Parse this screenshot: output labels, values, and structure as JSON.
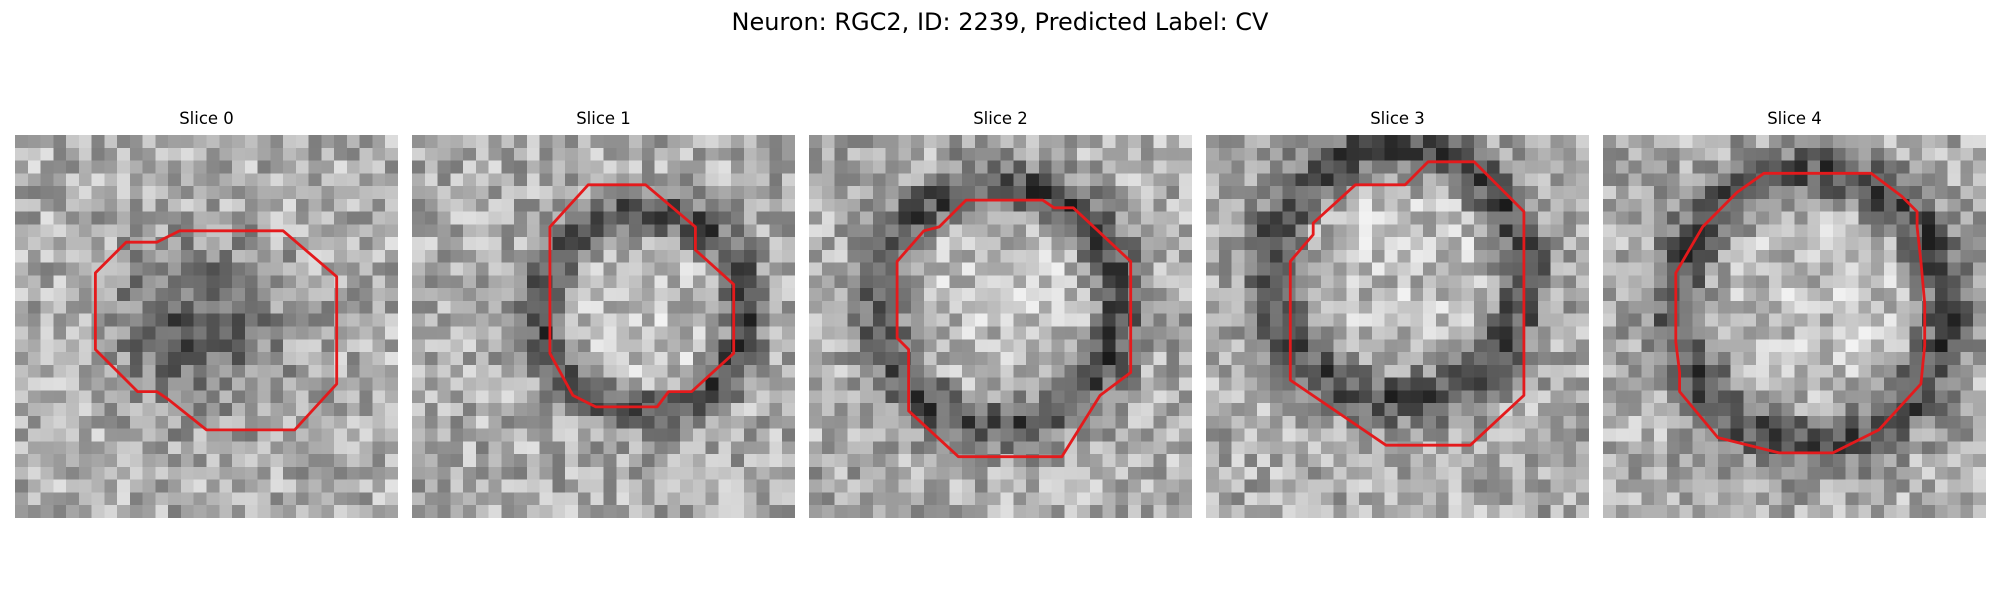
{
  "figure": {
    "title": "Neuron: RGC2, ID: 2239, Predicted Label: CV"
  },
  "panels": [
    {
      "title": "Slice 0",
      "seed": 11,
      "pattern": "dark-center",
      "outline": [
        [
          2.1,
          3.6
        ],
        [
          2.9,
          2.8
        ],
        [
          3.7,
          2.8
        ],
        [
          4.3,
          2.5
        ],
        [
          7.0,
          2.5
        ],
        [
          8.4,
          3.7
        ],
        [
          8.4,
          6.5
        ],
        [
          7.3,
          7.7
        ],
        [
          5.0,
          7.7
        ],
        [
          4.0,
          6.9
        ],
        [
          3.7,
          6.7
        ],
        [
          3.2,
          6.7
        ],
        [
          2.1,
          5.6
        ]
      ]
    },
    {
      "title": "Slice 1",
      "seed": 23,
      "pattern": "dark-ring",
      "outline": [
        [
          3.6,
          2.4
        ],
        [
          4.6,
          1.3
        ],
        [
          6.1,
          1.3
        ],
        [
          7.4,
          2.4
        ],
        [
          7.4,
          3.0
        ],
        [
          8.4,
          3.9
        ],
        [
          8.4,
          5.7
        ],
        [
          7.3,
          6.7
        ],
        [
          6.7,
          6.7
        ],
        [
          6.4,
          7.1
        ],
        [
          4.8,
          7.1
        ],
        [
          4.2,
          6.8
        ],
        [
          3.6,
          5.7
        ]
      ]
    },
    {
      "title": "Slice 2",
      "seed": 37,
      "pattern": "dark-ring",
      "outline": [
        [
          2.3,
          3.3
        ],
        [
          3.0,
          2.5
        ],
        [
          3.4,
          2.4
        ],
        [
          4.1,
          1.7
        ],
        [
          6.1,
          1.7
        ],
        [
          6.4,
          1.9
        ],
        [
          6.9,
          1.9
        ],
        [
          8.4,
          3.3
        ],
        [
          8.4,
          6.2
        ],
        [
          7.6,
          6.8
        ],
        [
          6.6,
          8.4
        ],
        [
          3.9,
          8.4
        ],
        [
          2.6,
          7.2
        ],
        [
          2.6,
          5.6
        ],
        [
          2.3,
          5.3
        ]
      ]
    },
    {
      "title": "Slice 3",
      "seed": 53,
      "pattern": "dark-ring",
      "outline": [
        [
          2.2,
          3.3
        ],
        [
          2.8,
          2.6
        ],
        [
          2.8,
          2.3
        ],
        [
          3.9,
          1.3
        ],
        [
          5.2,
          1.3
        ],
        [
          5.8,
          0.7
        ],
        [
          7.0,
          0.7
        ],
        [
          8.3,
          2.0
        ],
        [
          8.3,
          6.8
        ],
        [
          6.9,
          8.1
        ],
        [
          4.7,
          8.1
        ],
        [
          2.2,
          6.4
        ]
      ]
    },
    {
      "title": "Slice 4",
      "seed": 71,
      "pattern": "dark-ring",
      "outline": [
        [
          1.9,
          3.6
        ],
        [
          2.6,
          2.4
        ],
        [
          3.5,
          1.5
        ],
        [
          4.2,
          1.0
        ],
        [
          7.0,
          1.0
        ],
        [
          7.8,
          1.6
        ],
        [
          8.2,
          2.0
        ],
        [
          8.2,
          2.4
        ],
        [
          8.3,
          3.3
        ],
        [
          8.4,
          4.4
        ],
        [
          8.4,
          5.5
        ],
        [
          8.3,
          6.5
        ],
        [
          7.2,
          7.7
        ],
        [
          6.0,
          8.3
        ],
        [
          4.6,
          8.3
        ],
        [
          3.0,
          7.9
        ],
        [
          2.0,
          6.7
        ],
        [
          2.0,
          6.2
        ],
        [
          1.9,
          5.4
        ]
      ]
    }
  ]
}
